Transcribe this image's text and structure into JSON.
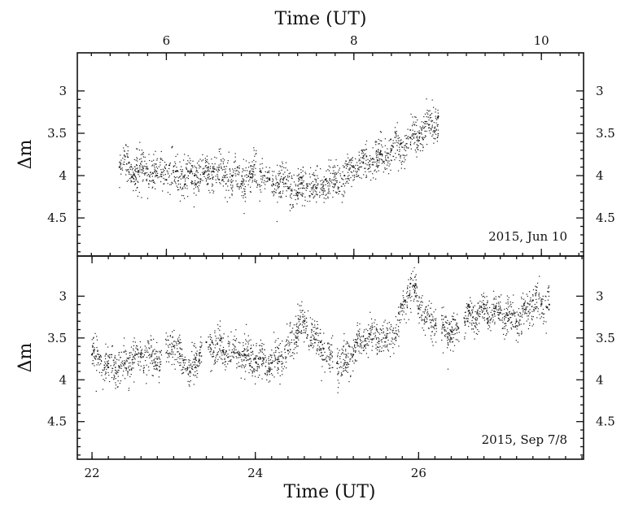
{
  "chart_data": [
    {
      "type": "scatter",
      "title": "",
      "panel": "top",
      "annotation": "2015, Jun 10",
      "xlabel": "Time (UT)",
      "ylabel": "Δm",
      "xlim": [
        5.05,
        10.45
      ],
      "ylim": [
        2.55,
        4.95
      ],
      "y_inverted": true,
      "xticks": [
        6,
        8,
        10
      ],
      "xtick_labels": [
        "6",
        "8",
        "10"
      ],
      "yticks": [
        3,
        3.5,
        4,
        4.5
      ],
      "ytick_labels": [
        "3",
        "3.5",
        "4",
        "4.5"
      ],
      "trend_x": [
        5.5,
        5.7,
        6.0,
        6.2,
        6.5,
        6.8,
        7.0,
        7.2,
        7.4,
        7.6,
        7.8,
        8.0,
        8.1,
        8.3,
        8.5,
        8.7,
        8.9
      ],
      "trend_y": [
        3.88,
        3.92,
        3.98,
        4.02,
        3.97,
        4.05,
        3.98,
        4.08,
        4.15,
        4.12,
        4.08,
        3.95,
        3.82,
        3.78,
        3.65,
        3.52,
        3.35
      ],
      "x": [
        5.5,
        5.6,
        5.7,
        5.8,
        5.9,
        6.0,
        6.1,
        6.2,
        6.3,
        6.4,
        6.5,
        6.6,
        6.7,
        6.8,
        6.9,
        7.0,
        7.1,
        7.2,
        7.3,
        7.4,
        7.5,
        7.6,
        7.7,
        7.8,
        7.9,
        8.0,
        8.1,
        8.2,
        8.3,
        8.4,
        8.5,
        8.6,
        8.7,
        8.8,
        8.9
      ],
      "y": [
        3.9,
        3.85,
        3.95,
        3.92,
        4.0,
        4.05,
        3.95,
        4.1,
        4.0,
        3.98,
        3.95,
        4.05,
        4.0,
        4.1,
        4.02,
        3.95,
        4.05,
        4.1,
        4.15,
        4.2,
        4.1,
        4.15,
        4.05,
        4.1,
        4.0,
        3.9,
        3.85,
        3.8,
        3.75,
        3.7,
        3.62,
        3.55,
        3.5,
        3.4,
        3.3
      ]
    },
    {
      "type": "scatter",
      "title": "",
      "panel": "bottom",
      "annotation": "2015, Sep 7/8",
      "xlabel": "Time (UT)",
      "ylabel": "Δm",
      "xlim": [
        21.82,
        28.02
      ],
      "ylim": [
        2.52,
        4.95
      ],
      "y_inverted": true,
      "xticks": [
        22,
        24,
        26
      ],
      "xtick_labels": [
        "22",
        "24",
        "26"
      ],
      "yticks": [
        3,
        3.5,
        4,
        4.5
      ],
      "ytick_labels": [
        "3",
        "3.5",
        "4",
        "4.5"
      ],
      "gaps": [
        [
          22.85,
          22.9
        ],
        [
          23.35,
          23.42
        ],
        [
          24.95,
          25.0
        ],
        [
          26.22,
          26.28
        ],
        [
          26.5,
          26.55
        ]
      ],
      "trend_x": [
        22.0,
        22.2,
        22.4,
        22.6,
        22.8,
        23.0,
        23.2,
        23.4,
        23.6,
        23.8,
        24.0,
        24.2,
        24.4,
        24.55,
        24.7,
        24.9,
        25.1,
        25.3,
        25.45,
        25.6,
        25.75,
        25.85,
        25.92,
        26.0,
        26.1,
        26.2,
        26.3,
        26.45,
        26.6,
        26.8,
        27.0,
        27.2,
        27.4,
        27.6
      ],
      "trend_y": [
        3.7,
        3.85,
        3.8,
        3.7,
        3.75,
        3.6,
        3.9,
        3.55,
        3.65,
        3.7,
        3.75,
        3.8,
        3.65,
        3.3,
        3.45,
        3.75,
        3.8,
        3.5,
        3.45,
        3.55,
        3.35,
        3.0,
        2.85,
        3.05,
        3.25,
        3.35,
        3.4,
        3.45,
        3.25,
        3.15,
        3.2,
        3.3,
        3.05,
        3.1
      ],
      "x": [
        22.0,
        22.2,
        22.4,
        22.6,
        22.8,
        23.0,
        23.2,
        23.4,
        23.6,
        23.8,
        24.0,
        24.2,
        24.4,
        24.6,
        24.8,
        25.0,
        25.2,
        25.4,
        25.6,
        25.8,
        25.9,
        26.0,
        26.2,
        26.4,
        26.6,
        26.8,
        27.0,
        27.2,
        27.4,
        27.6
      ],
      "y": [
        3.7,
        3.85,
        3.8,
        3.7,
        3.75,
        3.6,
        3.9,
        3.55,
        3.65,
        3.7,
        3.75,
        3.8,
        3.65,
        3.3,
        3.55,
        3.8,
        3.7,
        3.45,
        3.5,
        3.1,
        2.85,
        3.15,
        3.35,
        3.42,
        3.3,
        3.15,
        3.2,
        3.3,
        3.05,
        3.1
      ]
    }
  ],
  "labels": {
    "top_xlabel": "Time (UT)",
    "bottom_xlabel": "Time (UT)",
    "ylabel_top": "Δm",
    "ylabel_bottom": "Δm",
    "annotation_top": "2015, Jun 10",
    "annotation_bottom": "2015, Sep 7/8"
  }
}
